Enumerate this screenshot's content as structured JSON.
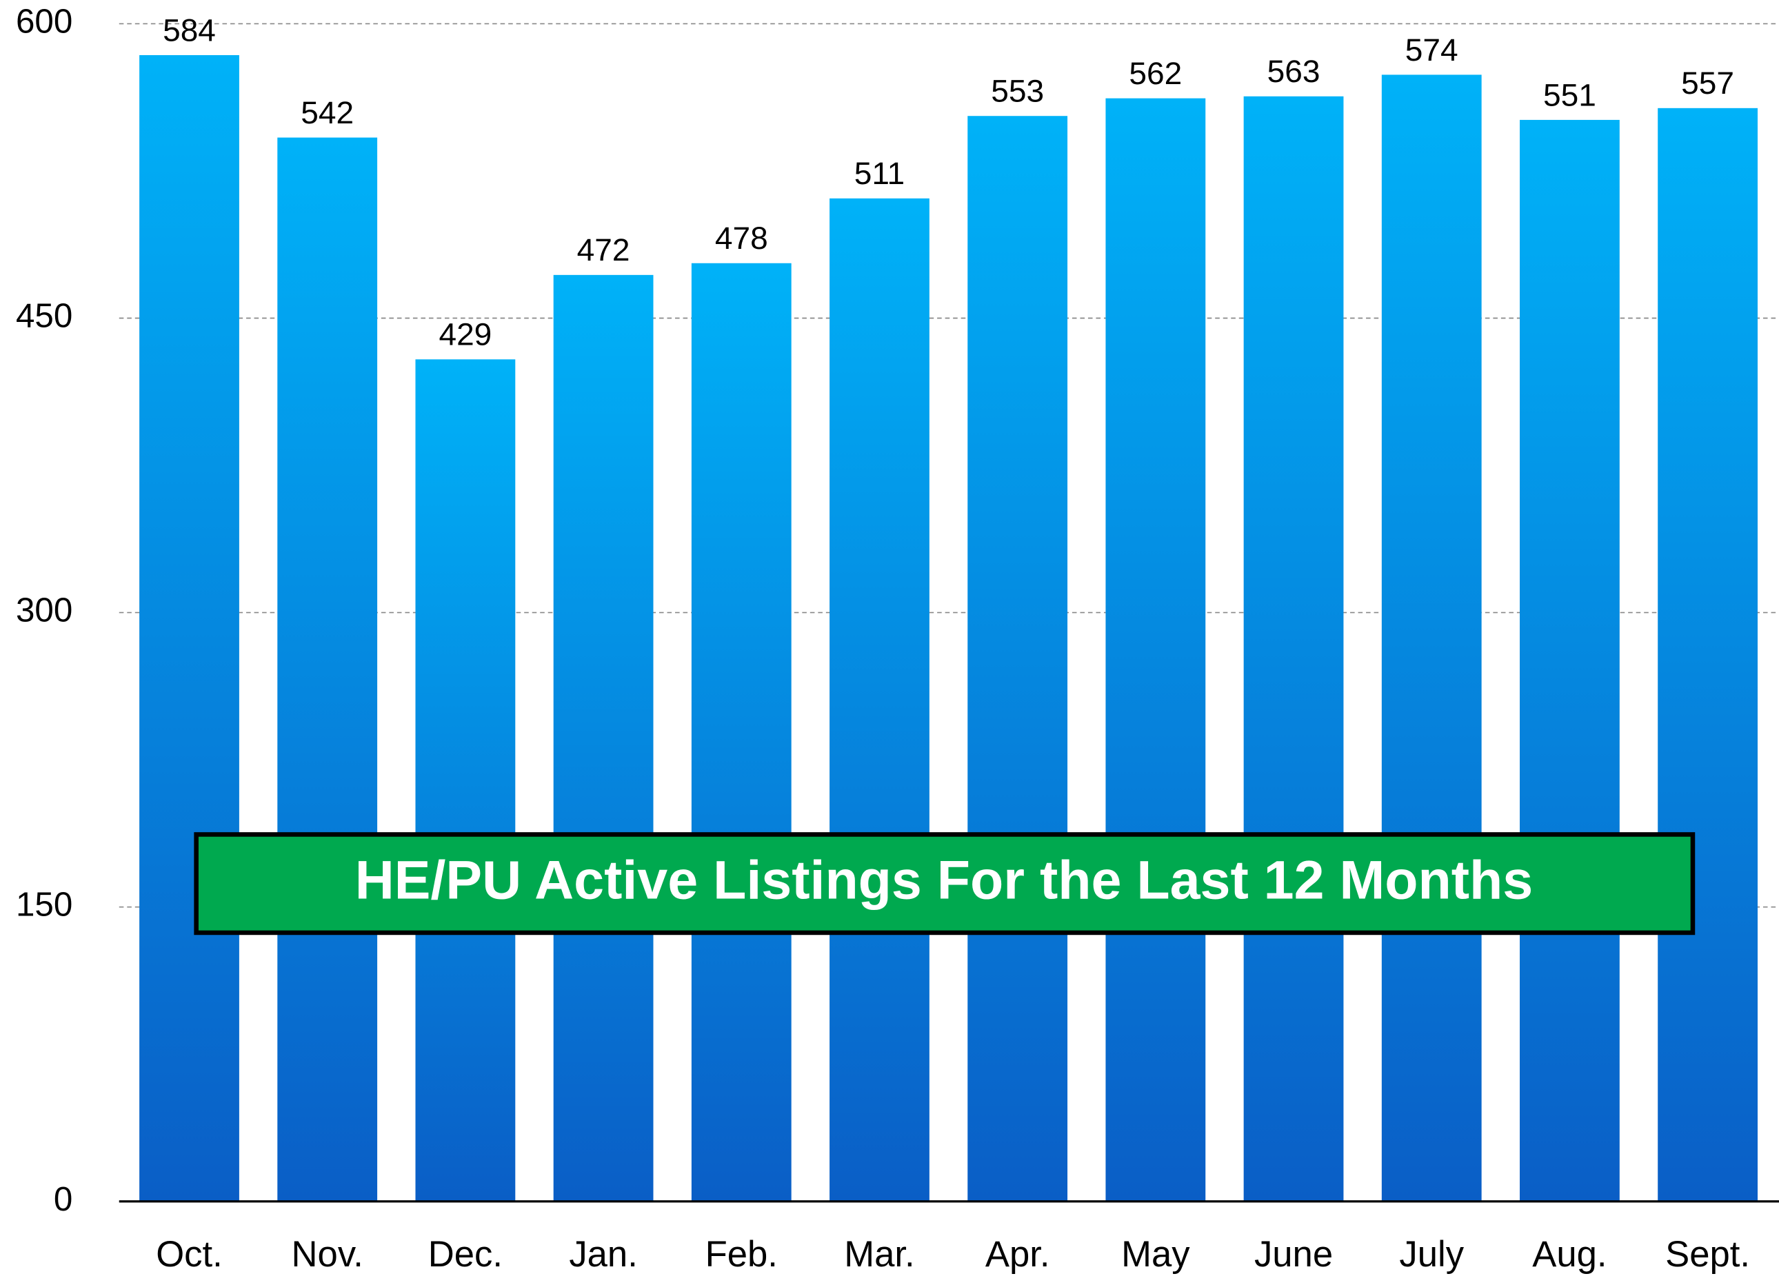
{
  "chart_data": {
    "type": "bar",
    "title": "HE/PU Active Listings For the Last 12 Months",
    "categories": [
      "Oct.",
      "Nov.",
      "Dec.",
      "Jan.",
      "Feb.",
      "Mar.",
      "Apr.",
      "May",
      "June",
      "July",
      "Aug.",
      "Sept."
    ],
    "values": [
      584,
      542,
      429,
      472,
      478,
      511,
      553,
      562,
      563,
      574,
      551,
      557
    ],
    "color": "#0a7be0",
    "ylim": [
      0,
      600
    ],
    "yticks": [
      0,
      150,
      300,
      450,
      600
    ],
    "grid": true
  }
}
